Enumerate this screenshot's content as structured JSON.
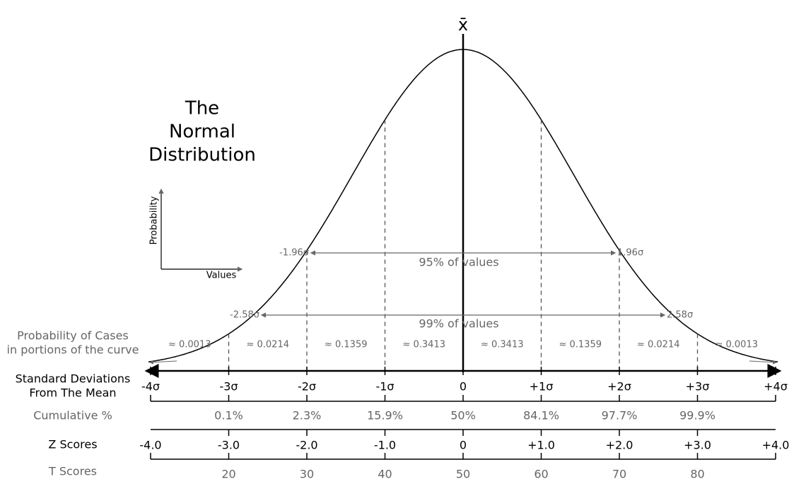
{
  "title": [
    "The",
    "Normal",
    "Distribution"
  ],
  "mean_symbol": "x̄",
  "inset_axes": {
    "y_label": "Probability",
    "x_label": "Values"
  },
  "intervals": [
    {
      "from": "-1.96σ",
      "to": "1.96σ",
      "label": "95% of values"
    },
    {
      "from": "-2.58σ",
      "to": "2.58σ",
      "label": "99% of values"
    }
  ],
  "probability_row": {
    "label": [
      "Probability of Cases",
      "in portions of the curve"
    ],
    "portions": [
      "≈ 0.0013",
      "≈ 0.0214",
      "≈ 0.1359",
      "≈ 0.3413",
      "≈ 0.3413",
      "≈ 0.1359",
      "≈ 0.0214",
      "≈ 0.0013"
    ]
  },
  "sd_row": {
    "label": [
      "Standard Deviations",
      "From The Mean"
    ],
    "ticks": [
      "-4σ",
      "-3σ",
      "-2σ",
      "-1σ",
      "0",
      "+1σ",
      "+2σ",
      "+3σ",
      "+4σ"
    ]
  },
  "cumulative_row": {
    "label": "Cumulative %",
    "ticks": [
      "0.1%",
      "2.3%",
      "15.9%",
      "50%",
      "84.1%",
      "97.7%",
      "99.9%"
    ]
  },
  "z_row": {
    "label": "Z Scores",
    "ticks": [
      "-4.0",
      "-3.0",
      "-2.0",
      "-1.0",
      "0",
      "+1.0",
      "+2.0",
      "+3.0",
      "+4.0"
    ]
  },
  "t_row": {
    "label": "T Scores",
    "ticks": [
      "20",
      "30",
      "40",
      "50",
      "60",
      "70",
      "80"
    ]
  }
}
